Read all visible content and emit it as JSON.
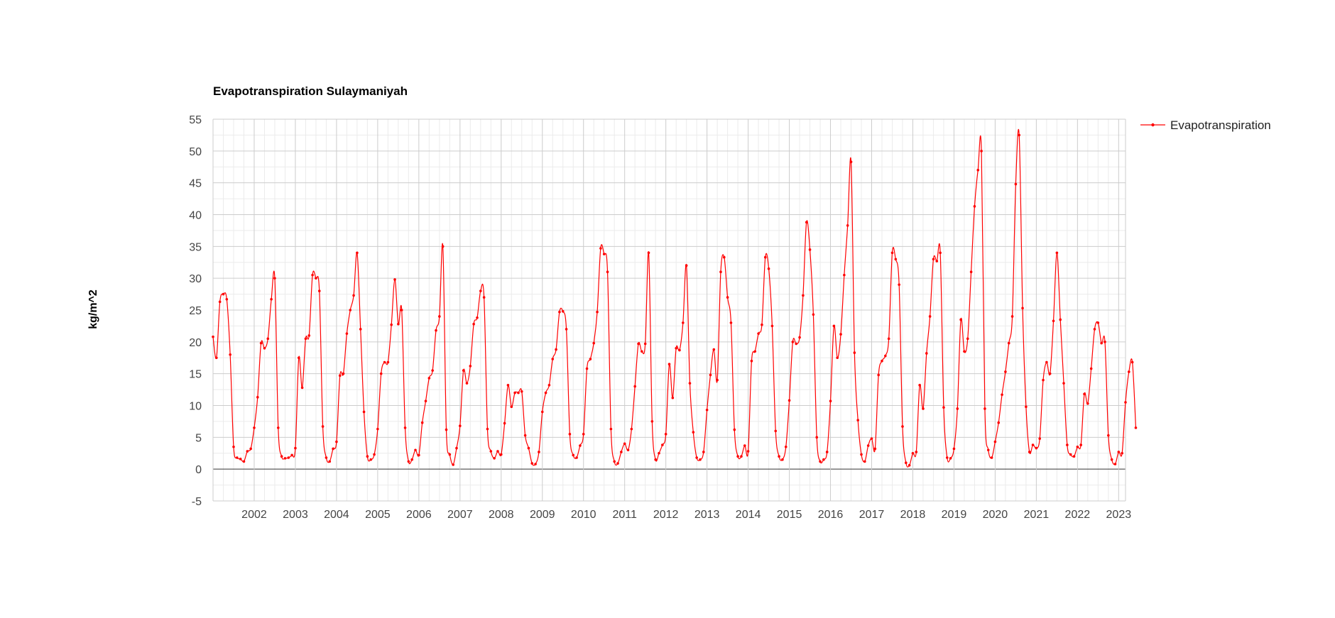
{
  "chart_data": {
    "type": "line",
    "title": "Evapotranspiration Sulaymaniyah",
    "ylabel": "kg/m^2",
    "xlabel": "",
    "ylim": [
      -5,
      55
    ],
    "yticks": [
      -5,
      0,
      5,
      10,
      15,
      20,
      25,
      30,
      35,
      40,
      45,
      50,
      55
    ],
    "xlim": [
      2001.0,
      2023.167
    ],
    "xticks": [
      2002,
      2003,
      2004,
      2005,
      2006,
      2007,
      2008,
      2009,
      2010,
      2011,
      2012,
      2013,
      2014,
      2015,
      2016,
      2017,
      2018,
      2019,
      2020,
      2021,
      2022,
      2023
    ],
    "grid": true,
    "legend": "right",
    "colors": {
      "series": "#ff0000",
      "gridMajor": "#cccccc",
      "gridMinor": "#ebebeb",
      "zeroLine": "#333333"
    },
    "series": [
      {
        "name": "Evapotranspiration",
        "start_year": 2001,
        "values": [
          20.8,
          17.5,
          26.3,
          27.5,
          26.7,
          18.0,
          3.5,
          1.8,
          1.6,
          1.2,
          2.8,
          3.2,
          6.5,
          11.3,
          19.8,
          19.0,
          20.5,
          26.7,
          30.0,
          6.5,
          2.0,
          1.7,
          1.8,
          2.2,
          3.3,
          17.5,
          12.8,
          20.5,
          21.0,
          30.5,
          30.0,
          28.0,
          6.7,
          1.8,
          1.2,
          3.2,
          4.3,
          14.7,
          15.0,
          21.3,
          25.0,
          27.3,
          34.0,
          22.0,
          9.0,
          2.0,
          1.5,
          2.3,
          6.3,
          15.0,
          16.8,
          16.8,
          22.7,
          29.8,
          22.8,
          25.0,
          6.5,
          1.2,
          1.5,
          3.0,
          2.2,
          7.3,
          10.7,
          14.3,
          15.5,
          21.8,
          24.0,
          35.0,
          6.2,
          2.3,
          0.7,
          3.3,
          6.8,
          15.5,
          13.5,
          16.2,
          22.8,
          23.8,
          28.0,
          27.0,
          6.3,
          2.8,
          1.7,
          2.8,
          2.3,
          7.2,
          13.2,
          9.8,
          12.0,
          12.0,
          12.2,
          5.3,
          3.3,
          0.9,
          0.8,
          2.7,
          9.0,
          12.0,
          13.2,
          17.3,
          18.8,
          24.7,
          24.8,
          22.0,
          5.5,
          2.2,
          1.8,
          3.7,
          5.5,
          15.8,
          17.3,
          19.8,
          24.7,
          34.7,
          33.8,
          31.0,
          6.3,
          1.2,
          0.9,
          2.7,
          4.0,
          3.0,
          6.3,
          13.0,
          19.7,
          18.5,
          19.7,
          34.0,
          7.5,
          1.5,
          2.5,
          3.8,
          5.5,
          16.5,
          11.2,
          19.0,
          18.7,
          23.0,
          32.0,
          13.5,
          5.8,
          1.8,
          1.5,
          2.7,
          9.3,
          14.8,
          18.8,
          14.0,
          31.0,
          33.3,
          27.0,
          23.0,
          6.2,
          2.0,
          2.0,
          3.7,
          2.8,
          17.0,
          18.5,
          21.3,
          22.7,
          33.3,
          31.5,
          22.5,
          6.0,
          2.0,
          1.5,
          3.5,
          10.8,
          20.0,
          19.7,
          20.7,
          27.3,
          38.8,
          34.5,
          24.3,
          5.0,
          1.2,
          1.5,
          2.7,
          10.7,
          22.5,
          17.5,
          21.2,
          30.5,
          38.3,
          48.3,
          18.3,
          7.7,
          2.3,
          1.2,
          3.7,
          4.8,
          3.2,
          14.8,
          17.0,
          17.8,
          20.5,
          34.0,
          33.0,
          29.0,
          6.7,
          1.0,
          0.6,
          2.5,
          2.7,
          13.2,
          9.5,
          18.2,
          24.0,
          33.0,
          32.7,
          34.0,
          9.7,
          1.8,
          1.7,
          3.2,
          9.5,
          23.5,
          18.5,
          20.5,
          31.0,
          41.3,
          47.0,
          50.0,
          9.5,
          3.0,
          1.8,
          4.3,
          7.3,
          11.7,
          15.3,
          19.8,
          24.0,
          44.8,
          52.5,
          25.3,
          9.8,
          2.7,
          3.8,
          3.3,
          4.8,
          14.0,
          16.8,
          15.0,
          23.3,
          34.0,
          23.5,
          13.5,
          3.8,
          2.3,
          2.0,
          3.5,
          3.8,
          11.8,
          10.3,
          15.8,
          22.0,
          23.0,
          19.8,
          20.0,
          5.3,
          1.5,
          0.8,
          2.7,
          2.5,
          10.5,
          15.3,
          16.8,
          6.5
        ]
      }
    ]
  }
}
